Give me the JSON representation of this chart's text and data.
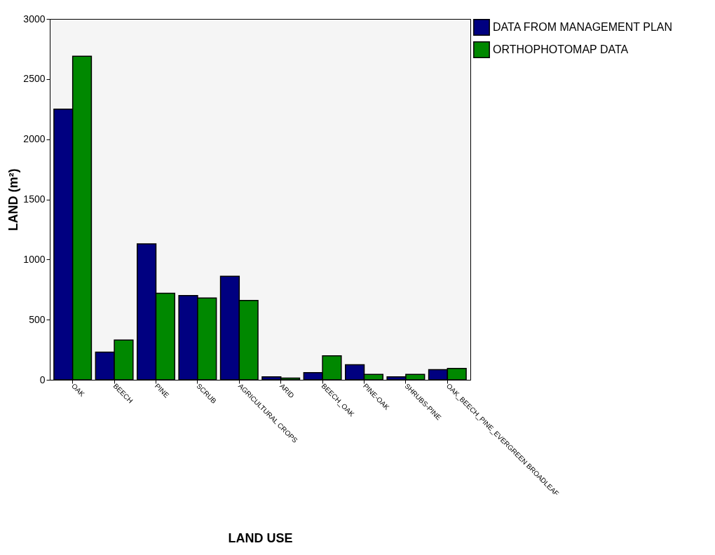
{
  "chart_data": {
    "type": "bar",
    "xlabel": "LAND USE",
    "ylabel": "LAND (m²)",
    "categories": [
      "OAK",
      "BEECH",
      "PINE",
      "SCRUB",
      "AGRICULTURAL CROPS",
      "ARID",
      "BEECH_OAK",
      "PINE-OAK",
      "SHRUBS-PINE",
      "OAK_BEECH_PINE_EVERGREEN BROADLEAF"
    ],
    "series": [
      {
        "name": "DATA FROM MANAGEMENT PLAN",
        "color": "#000080",
        "values": [
          2250,
          230,
          1130,
          700,
          860,
          25,
          60,
          125,
          25,
          85
        ]
      },
      {
        "name": "ORTHOPHOTOMAP DATA",
        "color": "#008800",
        "values": [
          2690,
          330,
          720,
          680,
          660,
          15,
          200,
          45,
          45,
          95
        ]
      }
    ],
    "ylim": [
      0,
      3000
    ],
    "yticks": [
      0,
      500,
      1000,
      1500,
      2000,
      2500,
      3000
    ],
    "grid": false,
    "legend": "top right"
  }
}
